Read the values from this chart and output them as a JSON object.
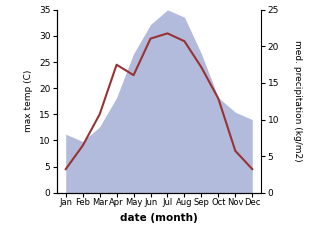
{
  "months": [
    "Jan",
    "Feb",
    "Mar",
    "Apr",
    "May",
    "Jun",
    "Jul",
    "Aug",
    "Sep",
    "Oct",
    "Nov",
    "Dec"
  ],
  "temp": [
    4.5,
    9.0,
    15.0,
    24.5,
    22.5,
    29.5,
    30.5,
    29.0,
    24.0,
    18.0,
    8.0,
    4.5
  ],
  "precip": [
    8,
    7,
    9,
    13,
    19,
    23,
    25,
    24,
    19,
    13,
    11,
    10
  ],
  "temp_color": "#993333",
  "precip_color": "#b3bbdd",
  "xlabel": "date (month)",
  "ylabel_left": "max temp (C)",
  "ylabel_right": "med. precipitation (kg/m2)",
  "ylim_left": [
    0,
    35
  ],
  "ylim_right": [
    0,
    25
  ],
  "yticks_left": [
    0,
    5,
    10,
    15,
    20,
    25,
    30,
    35
  ],
  "yticks_right": [
    0,
    5,
    10,
    15,
    20,
    25
  ]
}
